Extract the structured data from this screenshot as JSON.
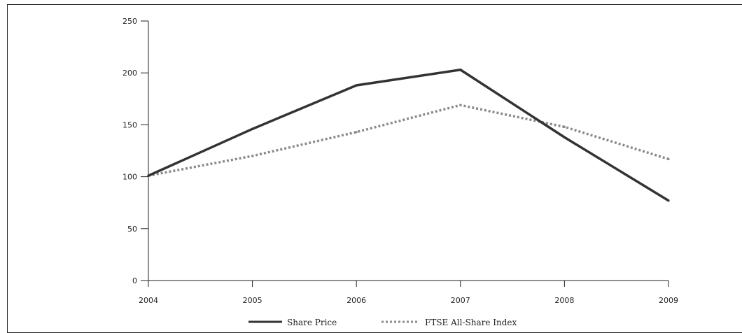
{
  "chart_data": {
    "type": "line",
    "x": [
      "2004",
      "2005",
      "2006",
      "2007",
      "2008",
      "2009"
    ],
    "series": [
      {
        "name": "Share Price",
        "values": [
          101,
          146,
          188,
          203,
          138,
          77
        ],
        "color": "#333333",
        "style": "solid"
      },
      {
        "name": "FTSE All-Share Index",
        "values": [
          101,
          120,
          143,
          169,
          148,
          117
        ],
        "color": "#8a8a8a",
        "style": "dotted"
      }
    ],
    "ylim": [
      0,
      250
    ],
    "yticks": [
      "0",
      "50",
      "100",
      "150",
      "200",
      "250"
    ],
    "legend_position": "bottom",
    "grid": false
  }
}
